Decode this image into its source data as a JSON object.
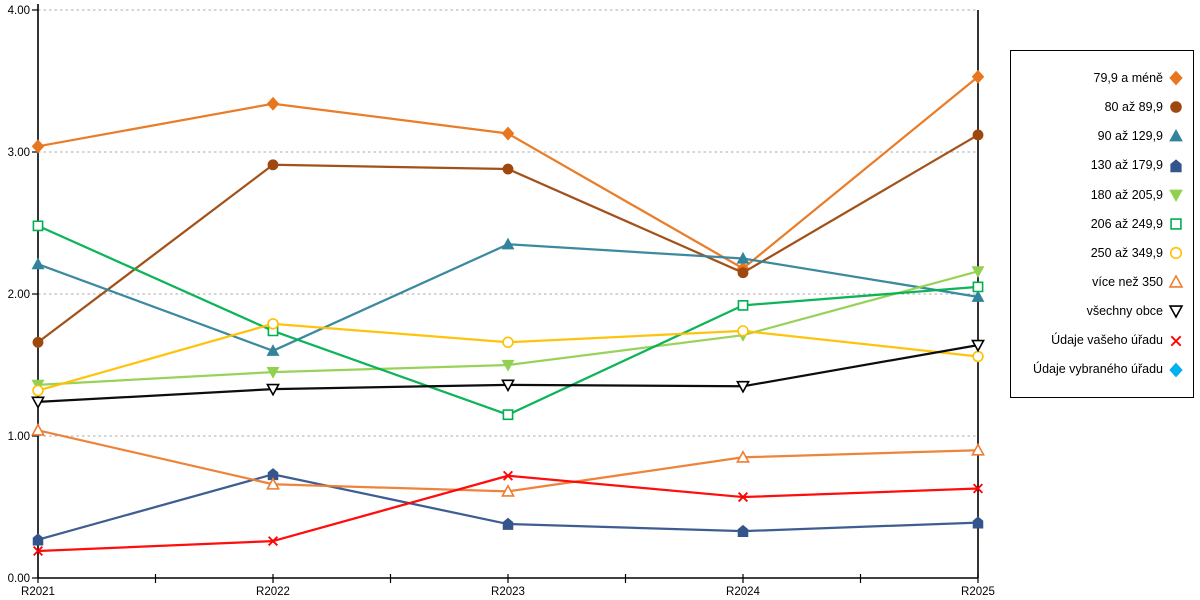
{
  "chart_data": {
    "type": "line",
    "title": "",
    "xlabel": "",
    "ylabel": "",
    "categories": [
      "R2021",
      "R2022",
      "R2023",
      "R2024",
      "R2025"
    ],
    "yticks": [
      "0.00",
      "1.00",
      "2.00",
      "3.00",
      "4.00"
    ],
    "ylim": [
      0,
      4
    ],
    "grid": "horizontal-dashed",
    "legend_position": "right",
    "series": [
      {
        "name": "79,9 a méně",
        "color": "#E8761E",
        "marker": "diamond",
        "filled": true,
        "values": [
          3.04,
          3.34,
          3.13,
          2.18,
          3.53
        ]
      },
      {
        "name": "80 až 89,9",
        "color": "#9E480E",
        "marker": "circle",
        "filled": true,
        "values": [
          1.66,
          2.91,
          2.88,
          2.15,
          3.12
        ]
      },
      {
        "name": "90 až 129,9",
        "color": "#31849B",
        "marker": "triangle-up",
        "filled": true,
        "values": [
          2.21,
          1.6,
          2.35,
          2.25,
          1.98
        ]
      },
      {
        "name": "130 až 179,9",
        "color": "#34558B",
        "marker": "pentagon",
        "filled": true,
        "values": [
          0.27,
          0.73,
          0.38,
          0.33,
          0.39
        ]
      },
      {
        "name": "180 až 205,9",
        "color": "#92D050",
        "marker": "triangle-down",
        "filled": true,
        "values": [
          1.36,
          1.45,
          1.5,
          1.71,
          2.16
        ]
      },
      {
        "name": "206 až 249,9",
        "color": "#00B050",
        "marker": "square",
        "filled": false,
        "values": [
          2.48,
          1.74,
          1.15,
          1.92,
          2.05
        ]
      },
      {
        "name": "250 až 349,9",
        "color": "#FFC000",
        "marker": "circle",
        "filled": false,
        "values": [
          1.32,
          1.79,
          1.66,
          1.74,
          1.56
        ]
      },
      {
        "name": "více než 350",
        "color": "#ED7D31",
        "marker": "triangle-up",
        "filled": false,
        "values": [
          1.04,
          0.66,
          0.61,
          0.85,
          0.9
        ]
      },
      {
        "name": "všechny obce",
        "color": "#000000",
        "marker": "triangle-down",
        "filled": false,
        "values": [
          1.24,
          1.33,
          1.36,
          1.35,
          1.64
        ]
      },
      {
        "name": "Údaje vašeho úřadu",
        "color": "#FF0000",
        "marker": "x",
        "filled": false,
        "values": [
          0.19,
          0.26,
          0.72,
          0.57,
          0.63
        ]
      },
      {
        "name": "Údaje vybraného úřadu",
        "color": "#00B0F0",
        "marker": "diamond",
        "filled": true,
        "values": []
      }
    ]
  }
}
